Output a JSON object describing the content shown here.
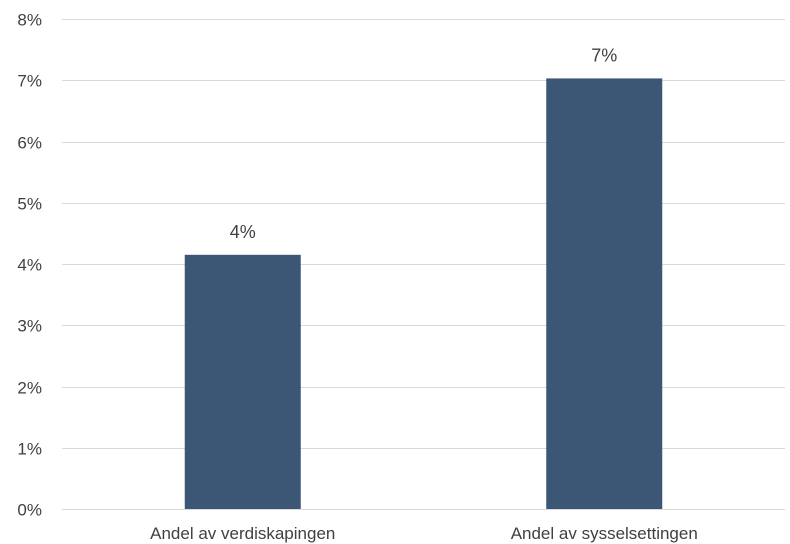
{
  "chart_data": {
    "type": "bar",
    "categories": [
      "Andel av verdiskapingen",
      "Andel av sysselsettingen"
    ],
    "values": [
      4.15,
      7.03
    ],
    "data_labels": [
      "4%",
      "7%"
    ],
    "y_ticks": [
      0,
      1,
      2,
      3,
      4,
      5,
      6,
      7,
      8
    ],
    "y_tick_labels": [
      "0%",
      "1%",
      "2%",
      "3%",
      "4%",
      "5%",
      "6%",
      "7%",
      "8%"
    ],
    "ylim": [
      0,
      8
    ],
    "grid": true,
    "legend": "none",
    "bar_color": "#3b5775",
    "grid_color": "#d9d9d9",
    "text_color": "#404040"
  }
}
